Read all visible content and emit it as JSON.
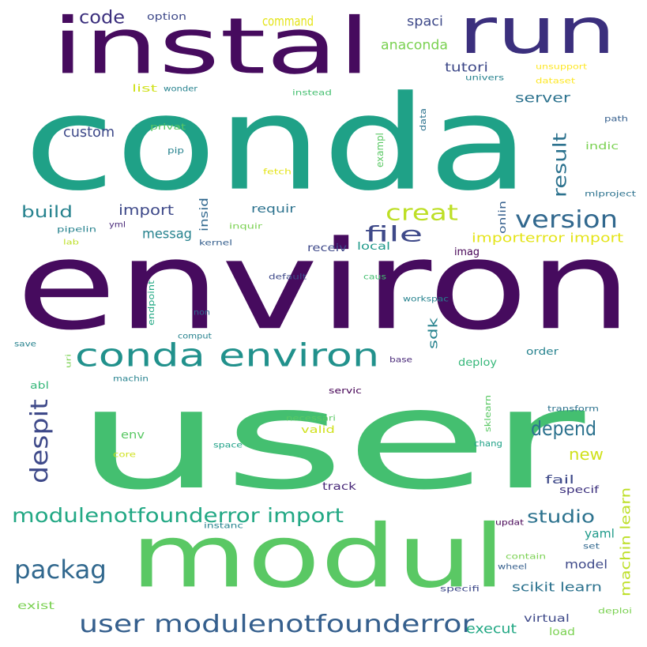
{
  "wordcloud": {
    "words": [
      {
        "text": "user",
        "color": "#44bf70"
      },
      {
        "text": "environ",
        "color": "#460b5e"
      },
      {
        "text": "conda",
        "color": "#1fa187"
      },
      {
        "text": "instal",
        "color": "#460b5e"
      },
      {
        "text": "run",
        "color": "#3b2f7d"
      },
      {
        "text": "modul",
        "color": "#5ac864"
      },
      {
        "text": "conda environ",
        "color": "#21918c"
      },
      {
        "text": "user modulenotfounderror",
        "color": "#355f8d"
      },
      {
        "text": "modulenotfounderror import",
        "color": "#22a884"
      },
      {
        "text": "packag",
        "color": "#31688e"
      },
      {
        "text": "despit",
        "color": "#3e4989"
      },
      {
        "text": "creat",
        "color": "#bddf26"
      },
      {
        "text": "file",
        "color": "#3e4989"
      },
      {
        "text": "version",
        "color": "#31688e"
      },
      {
        "text": "code",
        "color": "#3b2f7d"
      },
      {
        "text": "depend",
        "color": "#2c728e"
      },
      {
        "text": "studio",
        "color": "#2c728e"
      },
      {
        "text": "result",
        "color": "#2c728e"
      },
      {
        "text": "new",
        "color": "#d0e11c"
      },
      {
        "text": "build",
        "color": "#26828e"
      },
      {
        "text": "import",
        "color": "#3e4989"
      },
      {
        "text": "custom",
        "color": "#3e4989"
      },
      {
        "text": "server",
        "color": "#2c728e"
      },
      {
        "text": "machin learn",
        "color": "#bddf26"
      },
      {
        "text": "anaconda",
        "color": "#7ad151"
      },
      {
        "text": "importerror import",
        "color": "#e4e419"
      },
      {
        "text": "spaci",
        "color": "#3e4989"
      },
      {
        "text": "messag",
        "color": "#26828e"
      },
      {
        "text": "tutori",
        "color": "#3e4989"
      },
      {
        "text": "command",
        "color": "#e4e419"
      },
      {
        "text": "scikit learn",
        "color": "#2c728e"
      },
      {
        "text": "execut",
        "color": "#22a884"
      },
      {
        "text": "sdk",
        "color": "#26828e"
      },
      {
        "text": "model",
        "color": "#3e4989"
      },
      {
        "text": "fail",
        "color": "#3e4989"
      },
      {
        "text": "yaml",
        "color": "#1f9a8a"
      },
      {
        "text": "env",
        "color": "#5ac864"
      },
      {
        "text": "requir",
        "color": "#2c728e"
      },
      {
        "text": "track",
        "color": "#482878"
      },
      {
        "text": "deploy",
        "color": "#35b779"
      },
      {
        "text": "virtual",
        "color": "#3e4989"
      },
      {
        "text": "insid",
        "color": "#31688e"
      },
      {
        "text": "onlin",
        "color": "#355f8d"
      },
      {
        "text": "receiv",
        "color": "#3e4989"
      },
      {
        "text": "local",
        "color": "#1f9a8a"
      },
      {
        "text": "imag",
        "color": "#440154"
      },
      {
        "text": "order",
        "color": "#26828e"
      },
      {
        "text": "option",
        "color": "#3e4989"
      },
      {
        "text": "list",
        "color": "#d0e11c"
      },
      {
        "text": "wonder",
        "color": "#26828e"
      },
      {
        "text": "exist",
        "color": "#7ad151"
      },
      {
        "text": "load",
        "color": "#7ad151"
      },
      {
        "text": "valid",
        "color": "#d0e11c"
      },
      {
        "text": "indic",
        "color": "#7ad151"
      },
      {
        "text": "specif",
        "color": "#3b2f7d"
      },
      {
        "text": "abl",
        "color": "#35b779"
      },
      {
        "text": "univers",
        "color": "#26828e"
      },
      {
        "text": "unsupport",
        "color": "#fde725"
      },
      {
        "text": "dataset",
        "color": "#fde725"
      },
      {
        "text": "instead",
        "color": "#44bf70"
      },
      {
        "text": "data",
        "color": "#2c728e"
      },
      {
        "text": "path",
        "color": "#355f8d"
      },
      {
        "text": "exampl",
        "color": "#5ac864"
      },
      {
        "text": "privat",
        "color": "#5ac864"
      },
      {
        "text": "pip",
        "color": "#26828e"
      },
      {
        "text": "fetch",
        "color": "#e4e419"
      },
      {
        "text": "mlproject",
        "color": "#2c728e"
      },
      {
        "text": "pipelin",
        "color": "#26828e"
      },
      {
        "text": "yml",
        "color": "#482878"
      },
      {
        "text": "inquir",
        "color": "#7ad151"
      },
      {
        "text": "lab",
        "color": "#bddf26"
      },
      {
        "text": "kernel",
        "color": "#355f8d"
      },
      {
        "text": "default",
        "color": "#3e4989"
      },
      {
        "text": "caus",
        "color": "#44bf70"
      },
      {
        "text": "endpoint",
        "color": "#22a884"
      },
      {
        "text": "non",
        "color": "#31688e"
      },
      {
        "text": "workspac",
        "color": "#26828e"
      },
      {
        "text": "comput",
        "color": "#26828e"
      },
      {
        "text": "save",
        "color": "#26828e"
      },
      {
        "text": "uri",
        "color": "#7ad151"
      },
      {
        "text": "base",
        "color": "#482878"
      },
      {
        "text": "machin",
        "color": "#26828e"
      },
      {
        "text": "servic",
        "color": "#440154"
      },
      {
        "text": "sklearn",
        "color": "#5ac864"
      },
      {
        "text": "transform",
        "color": "#2c728e"
      },
      {
        "text": "necessari",
        "color": "#5ac864"
      },
      {
        "text": "chang",
        "color": "#1fa187"
      },
      {
        "text": "core",
        "color": "#d0e11c"
      },
      {
        "text": "space",
        "color": "#1fa187"
      },
      {
        "text": "instanc",
        "color": "#26828e"
      },
      {
        "text": "updat",
        "color": "#440154"
      },
      {
        "text": "set",
        "color": "#31688e"
      },
      {
        "text": "contain",
        "color": "#7ad151"
      },
      {
        "text": "wheel",
        "color": "#355f8d"
      },
      {
        "text": "specifi",
        "color": "#3e4989"
      },
      {
        "text": "deploi",
        "color": "#7ad151"
      }
    ]
  }
}
